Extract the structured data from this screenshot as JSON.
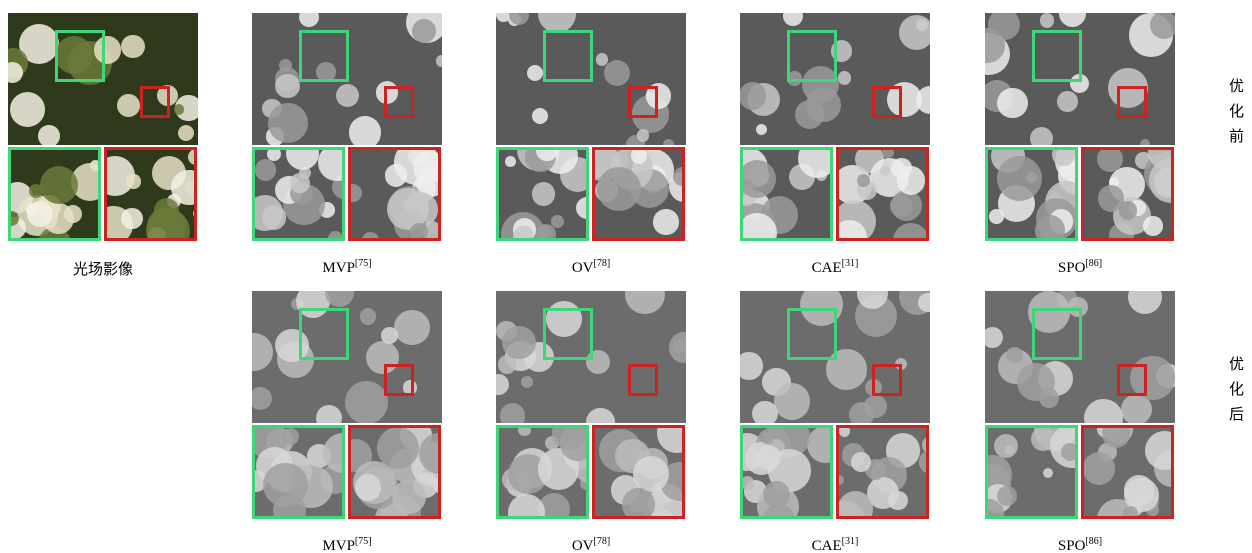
{
  "source": {
    "label": "光场影像"
  },
  "rows": [
    {
      "side_label": "优化前",
      "methods": [
        {
          "name": "MVP",
          "ref": "[75]"
        },
        {
          "name": "OV",
          "ref": "[78]"
        },
        {
          "name": "CAE",
          "ref": "[31]"
        },
        {
          "name": "SPO",
          "ref": "[86]"
        }
      ]
    },
    {
      "side_label": "优化后",
      "methods": [
        {
          "name": "MVP",
          "ref": "[75]"
        },
        {
          "name": "OV",
          "ref": "[78]"
        },
        {
          "name": "CAE",
          "ref": "[31]"
        },
        {
          "name": "SPO",
          "ref": "[86]"
        }
      ]
    }
  ]
}
